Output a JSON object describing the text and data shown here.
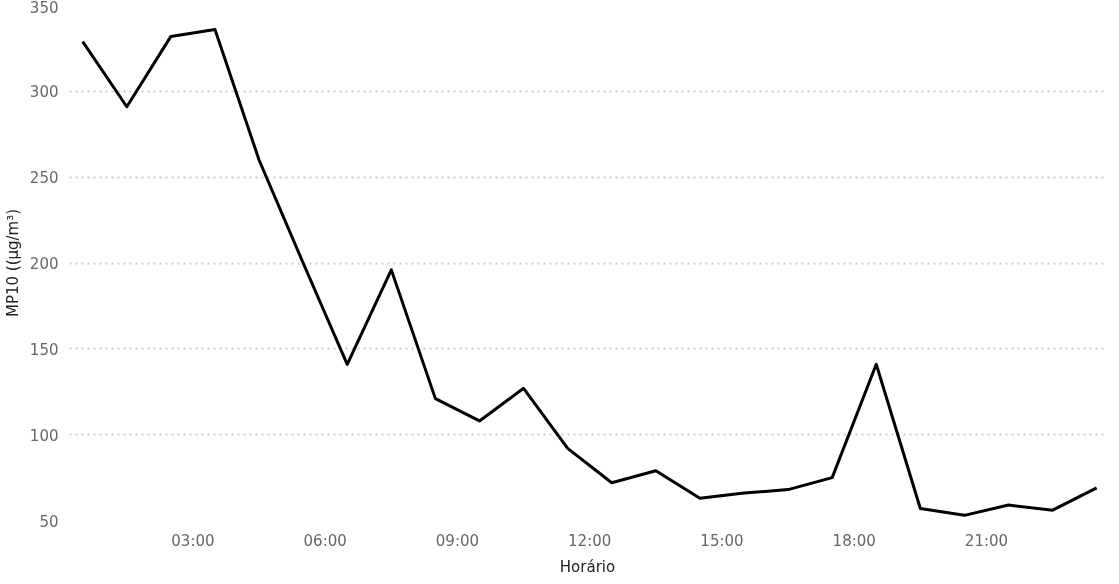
{
  "chart_data": {
    "type": "line",
    "xlabel": "Horário",
    "ylabel": "MP10 ((µg/m³)",
    "x": [
      0.5,
      1.5,
      2.5,
      3.5,
      4.5,
      5.5,
      6.5,
      7.5,
      8.5,
      9.5,
      10.5,
      11.5,
      12.5,
      13.5,
      14.5,
      15.5,
      16.5,
      17.5,
      18.5,
      19.5,
      20.5,
      21.5,
      22.5,
      23.5
    ],
    "series": [
      {
        "color": "#000000",
        "values": [
          329,
          291,
          332,
          336,
          260,
          200,
          141,
          196,
          121,
          108,
          127,
          92,
          72,
          79,
          63,
          66,
          68,
          75,
          141,
          57,
          53,
          59,
          56,
          69
        ]
      }
    ],
    "xlim": [
      0.2,
      23.7
    ],
    "xticks": [
      {
        "value": 3,
        "label": "03:00"
      },
      {
        "value": 6,
        "label": "06:00"
      },
      {
        "value": 9,
        "label": "09:00"
      },
      {
        "value": 12,
        "label": "12:00"
      },
      {
        "value": 15,
        "label": "15:00"
      },
      {
        "value": 18,
        "label": "18:00"
      },
      {
        "value": 21,
        "label": "21:00"
      }
    ],
    "ylim": [
      50,
      350
    ],
    "yticks": [
      50,
      100,
      150,
      200,
      250,
      300,
      350
    ],
    "grid": "y",
    "marker": "none",
    "line_style": "solid"
  }
}
